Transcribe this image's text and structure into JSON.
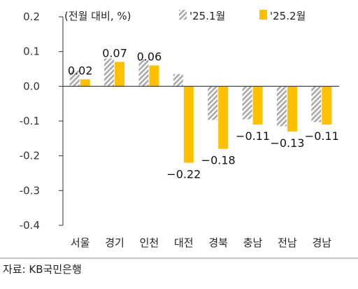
{
  "chart_data": {
    "type": "bar",
    "unit_label": "(전월 대비, %)",
    "categories": [
      "서울",
      "경기",
      "인천",
      "대전",
      "경북",
      "충남",
      "전남",
      "경남"
    ],
    "series": [
      {
        "name": "'25.1월",
        "values": [
          0.045,
          0.08,
          0.077,
          0.035,
          -0.097,
          -0.095,
          -0.115,
          -0.103
        ],
        "color": "#a9a9a9",
        "pattern": "diagonal-hatch"
      },
      {
        "name": "'25.2월",
        "values": [
          0.02,
          0.07,
          0.06,
          -0.22,
          -0.18,
          -0.11,
          -0.13,
          -0.11
        ],
        "color": "#ffc000",
        "data_labels": [
          "0.02",
          "0.07",
          "0.06",
          "−0.22",
          "−0.18",
          "−0.11",
          "−0.13",
          "−0.11"
        ]
      }
    ],
    "y_ticks": [
      "0.2",
      "0.1",
      "0.0",
      "-0.1",
      "-0.2",
      "-0.3",
      "-0.4"
    ],
    "ylim": [
      -0.4,
      0.2
    ],
    "legend_position": "top-right",
    "grid": false
  },
  "source": "자료: KB국민은행"
}
